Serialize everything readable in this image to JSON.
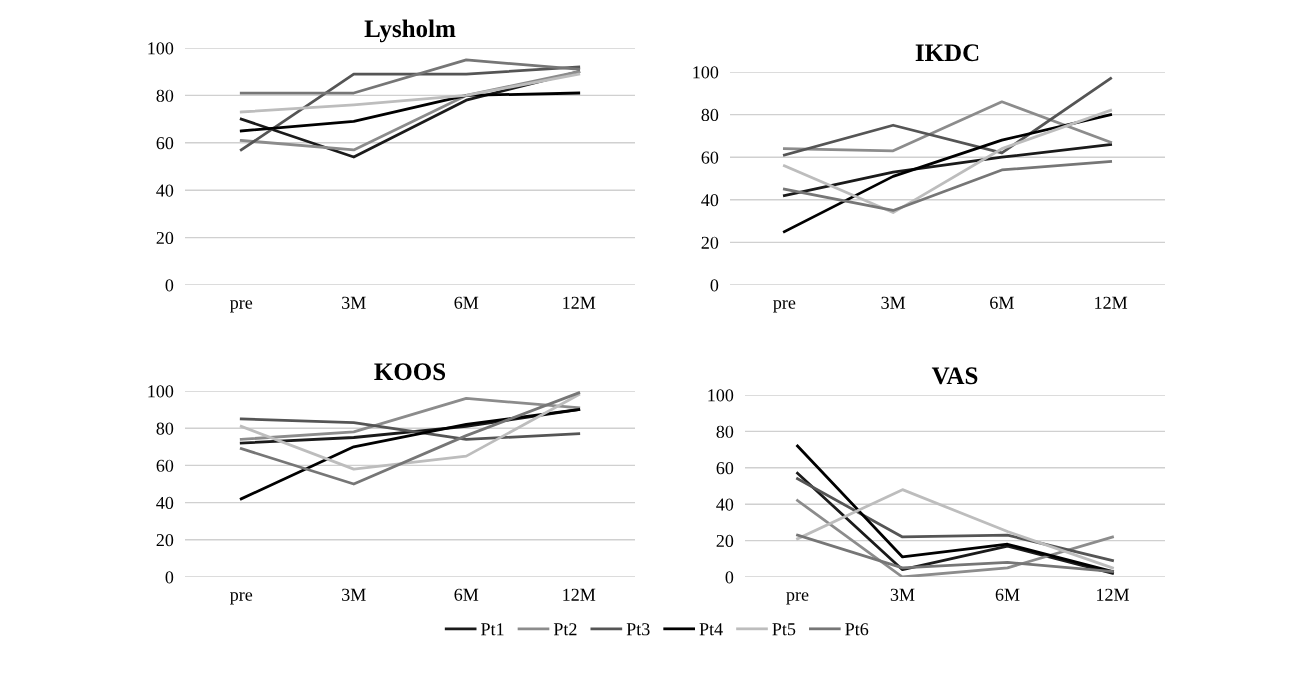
{
  "chart_data": [
    {
      "type": "line",
      "title": "Lysholm",
      "categories": [
        "pre",
        "3M",
        "6M",
        "12M"
      ],
      "ylim": [
        0,
        100
      ],
      "yticks": [
        0,
        20,
        40,
        60,
        80,
        100
      ],
      "grid": "y",
      "legend": "bottom",
      "series": [
        {
          "name": "Pt1",
          "color": "#1a1a1a",
          "values": [
            70,
            54,
            78,
            90
          ]
        },
        {
          "name": "Pt2",
          "color": "#8c8c8c",
          "values": [
            61,
            57,
            80,
            90
          ]
        },
        {
          "name": "Pt3",
          "color": "#555555",
          "values": [
            57,
            89,
            89,
            92
          ]
        },
        {
          "name": "Pt4",
          "color": "#000000",
          "values": [
            65,
            69,
            80,
            81
          ]
        },
        {
          "name": "Pt5",
          "color": "#bdbdbd",
          "values": [
            73,
            76,
            80,
            89
          ]
        },
        {
          "name": "Pt6",
          "color": "#767676",
          "values": [
            81,
            81,
            95,
            91
          ]
        }
      ]
    },
    {
      "type": "line",
      "title": "IKDC",
      "categories": [
        "pre",
        "3M",
        "6M",
        "12M"
      ],
      "ylim": [
        0,
        100
      ],
      "yticks": [
        0,
        20,
        40,
        60,
        80,
        100
      ],
      "grid": "y",
      "series": [
        {
          "color": "#1a1a1a",
          "values": [
            42,
            53,
            60,
            66
          ]
        },
        {
          "color": "#8c8c8c",
          "values": [
            64,
            63,
            86,
            67
          ]
        },
        {
          "color": "#555555",
          "values": [
            61,
            75,
            62,
            97
          ]
        },
        {
          "color": "#000000",
          "values": [
            25,
            51,
            68,
            80
          ]
        },
        {
          "color": "#bdbdbd",
          "values": [
            56,
            34,
            64,
            82
          ]
        },
        {
          "color": "#767676",
          "values": [
            45,
            35,
            54,
            58
          ]
        }
      ]
    },
    {
      "type": "line",
      "title": "KOOS",
      "categories": [
        "pre",
        "3M",
        "6M",
        "12M"
      ],
      "ylim": [
        0,
        100
      ],
      "yticks": [
        0,
        20,
        40,
        60,
        80,
        100
      ],
      "grid": "y",
      "series": [
        {
          "color": "#1a1a1a",
          "values": [
            72,
            75,
            81,
            90
          ]
        },
        {
          "color": "#8c8c8c",
          "values": [
            74,
            78,
            96,
            91
          ]
        },
        {
          "color": "#555555",
          "values": [
            85,
            83,
            74,
            77
          ]
        },
        {
          "color": "#000000",
          "values": [
            42,
            70,
            82,
            90
          ]
        },
        {
          "color": "#bdbdbd",
          "values": [
            81,
            58,
            65,
            98
          ]
        },
        {
          "color": "#767676",
          "values": [
            69,
            50,
            76,
            99
          ]
        }
      ]
    },
    {
      "type": "line",
      "title": "VAS",
      "categories": [
        "pre",
        "3M",
        "6M",
        "12M"
      ],
      "ylim": [
        0,
        100
      ],
      "yticks": [
        0,
        20,
        40,
        60,
        80,
        100
      ],
      "grid": "y",
      "series": [
        {
          "color": "#1a1a1a",
          "values": [
            57,
            4,
            17,
            2
          ]
        },
        {
          "color": "#8c8c8c",
          "values": [
            42,
            0,
            5,
            22
          ]
        },
        {
          "color": "#555555",
          "values": [
            54,
            22,
            23,
            9
          ]
        },
        {
          "color": "#000000",
          "values": [
            72,
            11,
            18,
            3
          ]
        },
        {
          "color": "#bdbdbd",
          "values": [
            21,
            48,
            25,
            5
          ]
        },
        {
          "color": "#767676",
          "values": [
            23,
            5,
            8,
            3
          ]
        }
      ]
    }
  ]
}
